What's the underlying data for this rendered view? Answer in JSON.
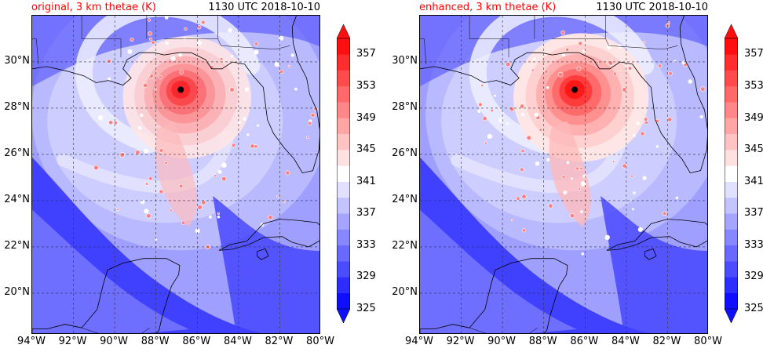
{
  "panels": [
    {
      "id": "original",
      "title_left": "original, 3 km thetae (K)",
      "title_right": "1130 UTC 2018-10-10",
      "center": {
        "lon": -86.8,
        "lat": 28.8
      },
      "warm_intensity": 0.8
    },
    {
      "id": "enhanced",
      "title_left": "enhanced, 3 km thetae (K)",
      "title_right": "1130 UTC 2018-10-10",
      "center": {
        "lon": -86.5,
        "lat": 28.8
      },
      "warm_intensity": 1.0
    }
  ],
  "map": {
    "lon_range": [
      -94,
      -80
    ],
    "lat_range": [
      18.2,
      32.0
    ],
    "lat_ticks": [
      {
        "value": 30,
        "label": "30°N"
      },
      {
        "value": 28,
        "label": "28°N"
      },
      {
        "value": 26,
        "label": "26°N"
      },
      {
        "value": 24,
        "label": "24°N"
      },
      {
        "value": 22,
        "label": "22°N"
      },
      {
        "value": 20,
        "label": "20°N"
      }
    ],
    "lon_ticks": [
      {
        "value": -94,
        "label": "94°W"
      },
      {
        "value": -92,
        "label": "92°W"
      },
      {
        "value": -90,
        "label": "90°W"
      },
      {
        "value": -88,
        "label": "88°W"
      },
      {
        "value": -86,
        "label": "86°W"
      },
      {
        "value": -84,
        "label": "84°W"
      },
      {
        "value": -82,
        "label": "82°W"
      },
      {
        "value": -80,
        "label": "80°W"
      }
    ]
  },
  "colorbar": {
    "min": 325,
    "max": 359,
    "tick_labels": [
      "325",
      "329",
      "333",
      "337",
      "341",
      "345",
      "349",
      "353",
      "357"
    ],
    "tick_values": [
      325,
      329,
      333,
      337,
      341,
      345,
      349,
      353,
      357
    ],
    "colors": [
      "#0f0fff",
      "#2d2dff",
      "#4b4bff",
      "#6969ff",
      "#8787ff",
      "#a5a5ff",
      "#c3c3ff",
      "#e1e1ff",
      "#ffffff",
      "#ffe1e1",
      "#ffc3c3",
      "#ffa5a5",
      "#ff8787",
      "#ff6969",
      "#ff4b4b",
      "#ff2d2d",
      "#ff0f0f"
    ]
  }
}
